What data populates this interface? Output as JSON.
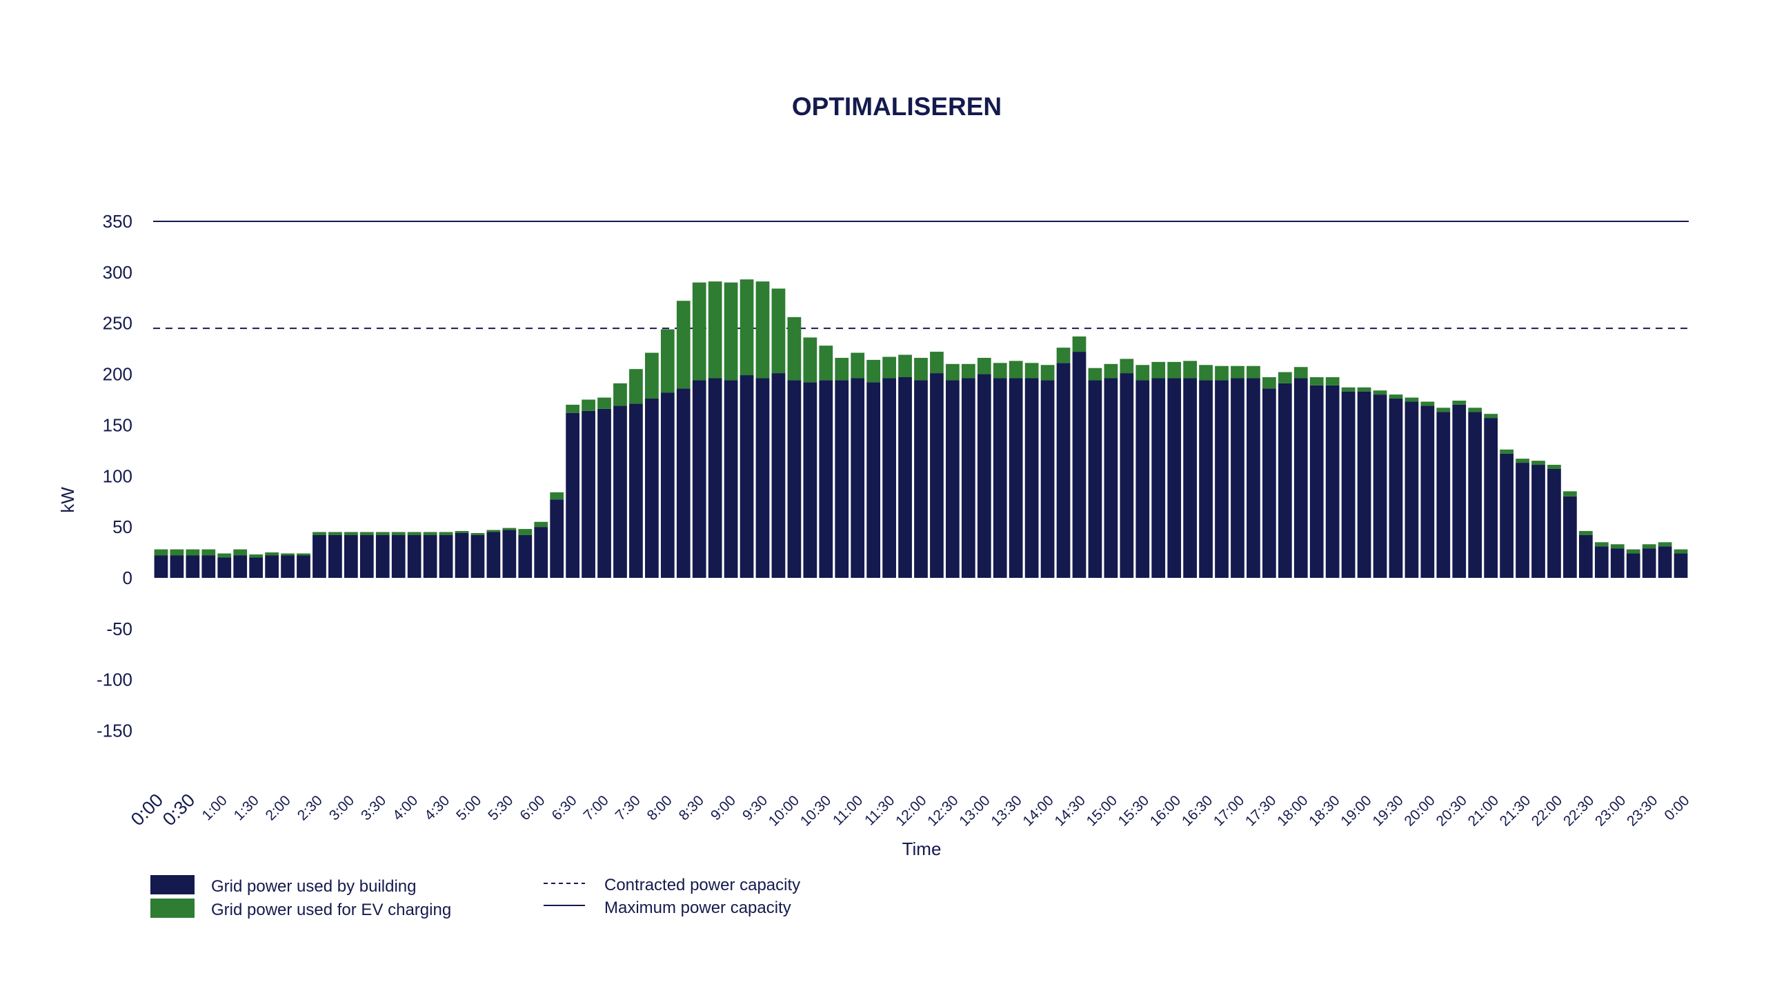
{
  "chart_data": {
    "type": "bar",
    "stacked": true,
    "title": "OPTIMALISEREN",
    "xlabel": "Time",
    "ylabel": "kW",
    "ylim": [
      -200,
      350
    ],
    "yticks": [
      350,
      300,
      250,
      200,
      150,
      100,
      50,
      0,
      -50,
      -100,
      -150
    ],
    "xtick_labels": [
      "0:00",
      "0:30",
      "1:00",
      "1:30",
      "2:00",
      "2:30",
      "3:00",
      "3:30",
      "4:00",
      "4:30",
      "5:00",
      "5:30",
      "6:00",
      "6:30",
      "7:00",
      "7:30",
      "8:00",
      "8:30",
      "9:00",
      "9:30",
      "10:00",
      "10:30",
      "11:00",
      "11:30",
      "12:00",
      "12:30",
      "13:00",
      "13:30",
      "14:00",
      "14:30",
      "15:00",
      "15:30",
      "16:00",
      "16:30",
      "17:00",
      "17:30",
      "18:00",
      "18:30",
      "19:00",
      "19:30",
      "20:00",
      "20:30",
      "21:00",
      "21:30",
      "22:00",
      "22:30",
      "23:00",
      "23:30",
      "0:00"
    ],
    "series": [
      {
        "name": "Grid power used by building",
        "color": "#141a4d",
        "values": [
          22,
          22,
          22,
          22,
          20,
          22,
          20,
          22,
          22,
          22,
          42,
          42,
          42,
          42,
          42,
          42,
          42,
          42,
          42,
          44,
          42,
          45,
          47,
          42,
          50,
          77,
          162,
          164,
          166,
          169,
          171,
          176,
          182,
          186,
          194,
          196,
          194,
          199,
          196,
          201,
          194,
          192,
          194,
          194,
          196,
          192,
          196,
          197,
          194,
          201,
          194,
          196,
          200,
          196,
          196,
          196,
          194,
          211,
          222,
          194,
          196,
          201,
          194,
          196,
          196,
          196,
          194,
          194,
          196,
          196,
          186,
          191,
          196,
          189,
          189,
          183,
          183,
          180,
          176,
          173,
          169,
          163,
          170,
          163,
          157,
          122,
          113,
          111,
          107,
          80,
          42,
          31,
          29,
          24,
          29,
          31,
          24
        ],
        "categories_note": ""
      },
      {
        "name": "Grid power used for EV charging",
        "color": "#2e7d32",
        "values": [
          6,
          6,
          6,
          6,
          4,
          6,
          3,
          3,
          2,
          2,
          3,
          3,
          3,
          3,
          3,
          3,
          3,
          3,
          3,
          2,
          2,
          2,
          2,
          6,
          5,
          7,
          8,
          11,
          11,
          22,
          34,
          45,
          62,
          86,
          96,
          95,
          96,
          94,
          95,
          83,
          62,
          44,
          34,
          22,
          25,
          22,
          21,
          22,
          22,
          21,
          16,
          14,
          16,
          15,
          17,
          15,
          15,
          15,
          15,
          12,
          14,
          14,
          15,
          16,
          16,
          17,
          15,
          14,
          12,
          12,
          11,
          11,
          11,
          8,
          8,
          4,
          4,
          4,
          4,
          4,
          4,
          4,
          4,
          4,
          4,
          4,
          4,
          4,
          4,
          5,
          4,
          4,
          4,
          4,
          4,
          4,
          4
        ]
      }
    ],
    "reference_lines": [
      {
        "name": "Contracted power capacity",
        "value": 245,
        "style": "dashed"
      },
      {
        "name": "Maximum power capacity",
        "value": 350,
        "style": "solid"
      }
    ],
    "legend_position": "bottom-left",
    "grid": false
  }
}
